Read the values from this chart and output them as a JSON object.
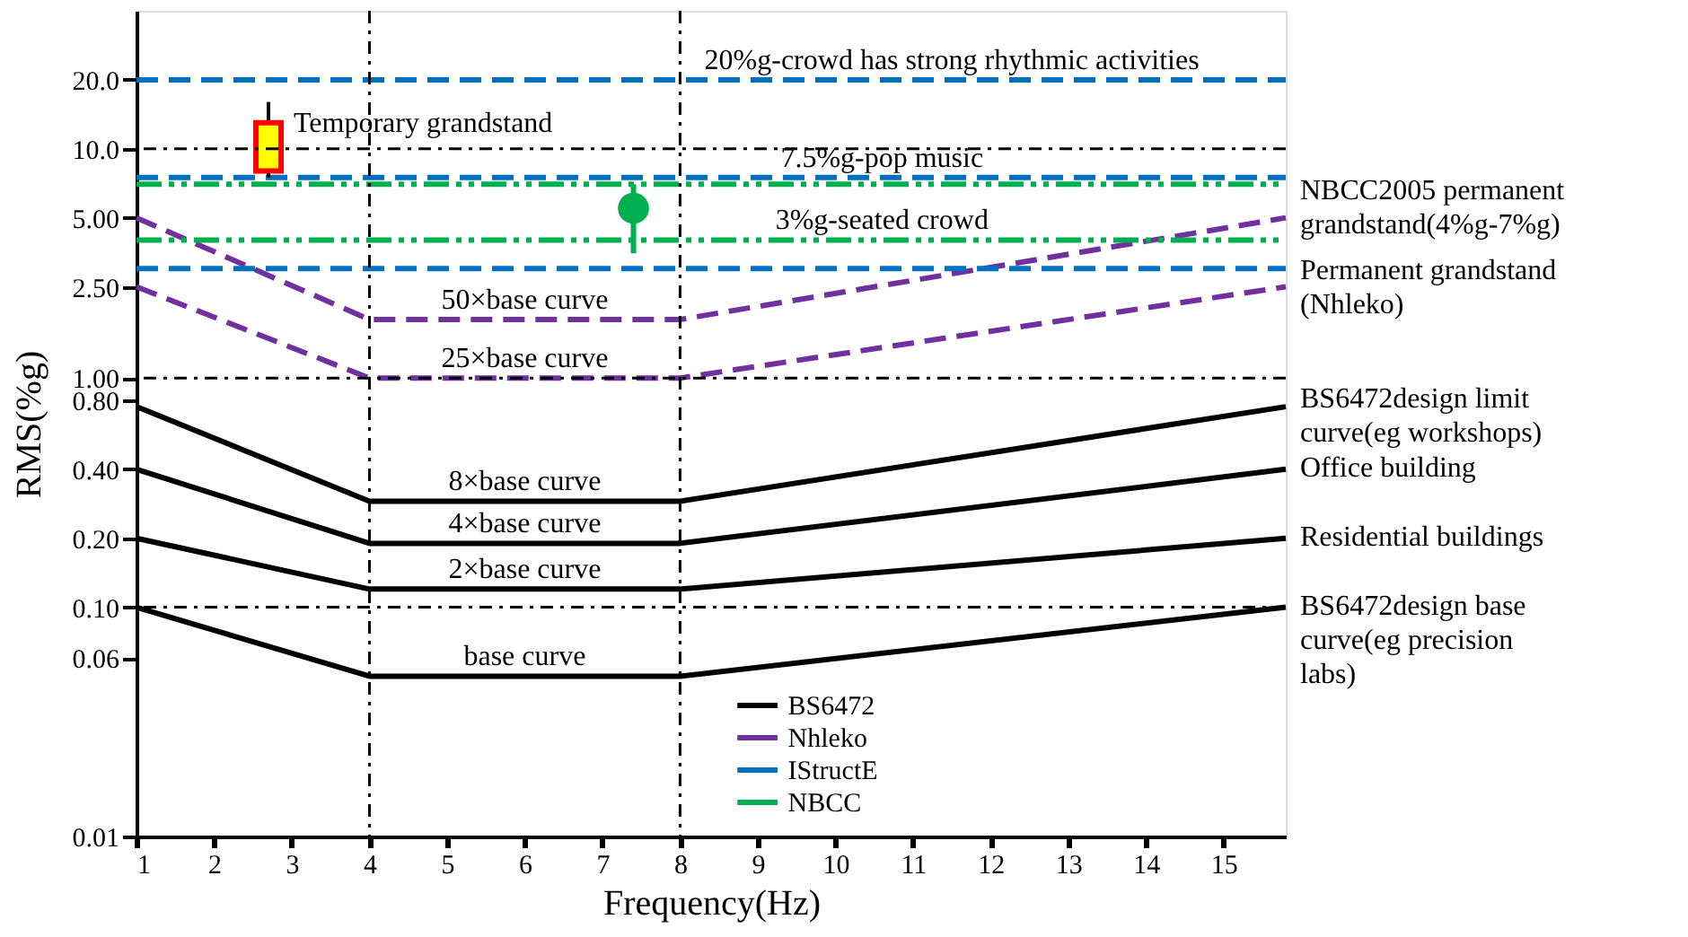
{
  "chart_data": {
    "type": "line",
    "xlabel": "Frequency(Hz)",
    "ylabel": "RMS(%g)",
    "xlim": [
      1,
      15.8
    ],
    "xticks": [
      1,
      2,
      3,
      4,
      5,
      6,
      7,
      8,
      9,
      10,
      11,
      12,
      13,
      14,
      15
    ],
    "ylim": [
      0.01,
      40
    ],
    "log": "y",
    "yticks": [
      0.01,
      0.06,
      {
        "value": 0.1,
        "label": "0.10"
      },
      {
        "value": 0.2,
        "label": "0.20"
      },
      {
        "value": 0.4,
        "label": "0.40"
      },
      {
        "value": 0.8,
        "label": "0.80"
      },
      {
        "value": 1,
        "label": "1.00"
      },
      {
        "value": 2.5,
        "label": "2.50"
      },
      {
        "value": 5,
        "label": "5.00"
      },
      {
        "value": 10,
        "label": "10.0"
      },
      {
        "value": 20,
        "label": "20.0"
      }
    ],
    "grid": false,
    "legend": "bottom",
    "series": [
      {
        "name": "BS6472",
        "color": "#000000",
        "line_style": "solid",
        "x": [
          1,
          4,
          8,
          15.8
        ],
        "values": [
          0.1,
          0.05,
          0.05,
          0.1
        ]
      },
      {
        "color": "#000000",
        "line_style": "solid",
        "x": [
          1,
          4,
          8,
          15.8
        ],
        "values": [
          0.2,
          0.12,
          0.12,
          0.2
        ]
      },
      {
        "color": "#000000",
        "line_style": "solid",
        "x": [
          1,
          4,
          8,
          15.8
        ],
        "values": [
          0.4,
          0.19,
          0.19,
          0.4
        ]
      },
      {
        "color": "#000000",
        "line_style": "solid",
        "x": [
          1,
          4,
          8,
          15.8
        ],
        "values": [
          0.75,
          0.29,
          0.29,
          0.75
        ]
      },
      {
        "name": "Nhleko",
        "color": "#7030a0",
        "line_style": "dashed",
        "x": [
          1,
          4,
          8,
          15.8
        ],
        "values": [
          2.5,
          1,
          1,
          2.5
        ]
      },
      {
        "color": "#7030a0",
        "line_style": "dashed",
        "x": [
          1,
          4,
          8,
          15.8
        ],
        "values": [
          5,
          1.8,
          1.8,
          5
        ]
      },
      {
        "name": "IStructE",
        "color": "#0070c0",
        "line_style": "dashed",
        "x": [
          1,
          15.8
        ],
        "values": [
          20,
          20
        ]
      },
      {
        "color": "#0070c0",
        "line_style": "dashed",
        "x": [
          1,
          15.8
        ],
        "values": [
          7.5,
          7.5
        ]
      },
      {
        "color": "#0070c0",
        "line_style": "dashed",
        "x": [
          1,
          15.8
        ],
        "values": [
          3,
          3
        ]
      },
      {
        "name": "NBCC",
        "color": "#00b050",
        "line_style": "dotted",
        "x": [
          1,
          15.8
        ],
        "values": [
          4,
          4
        ]
      },
      {
        "color": "#00b050",
        "line_style": "dotted",
        "x": [
          1,
          15.8
        ],
        "values": [
          7,
          7
        ]
      },
      {
        "type": "box",
        "color": "#ffff00",
        "x": [
          2.7
        ],
        "boxes": [
          {
            "low": 7.5,
            "q1": 8,
            "q3": 13,
            "high": 16
          }
        ]
      },
      {
        "type": "scatter",
        "color": "#00b050",
        "marker": "circle",
        "x": [
          7.4
        ],
        "values": [
          5.5
        ],
        "errors": [
          [
            3.5,
            7
          ]
        ]
      }
    ],
    "ref_lines": [
      {
        "axis": "x",
        "value": 4,
        "label": null,
        "color": "#000000",
        "line_style": "dashed"
      },
      {
        "axis": "x",
        "value": 8,
        "label": null,
        "color": "#000000",
        "line_style": "dashed"
      },
      {
        "axis": "y",
        "value": 0.1,
        "label": null,
        "color": "#000000",
        "line_style": "dashed"
      },
      {
        "axis": "y",
        "value": 1,
        "label": null,
        "color": "#000000",
        "line_style": "dashed"
      },
      {
        "axis": "y",
        "value": 10,
        "label": null,
        "color": "#000000",
        "line_style": "dashed"
      }
    ],
    "annotations": [
      {
        "text": "20%g-crowd has strong rhythmic activities",
        "x": 11.5,
        "y": 20
      },
      {
        "text": "7.5%g-pop music",
        "x": 10.6,
        "y": 7.5
      },
      {
        "text": "3%g-seated crowd",
        "x": 10.6,
        "y": 4
      },
      {
        "text": "Temporary grandstand",
        "x": 2.7,
        "y": 13
      },
      {
        "text": "50×base curve",
        "x": 6,
        "y": 1.8
      },
      {
        "text": "25×base curve",
        "x": 6,
        "y": 1
      },
      {
        "text": "8×base curve",
        "x": 6,
        "y": 0.29
      },
      {
        "text": "4×base curve",
        "x": 6,
        "y": 0.19
      },
      {
        "text": "2×base curve",
        "x": 6,
        "y": 0.12
      },
      {
        "text": "base curve",
        "x": 6,
        "y": 0.05
      },
      {
        "text": "NBCC2005 permanent grandstand(4%g-7%g)",
        "x": 15.8,
        "y": 6.5
      },
      {
        "text": "Permanent grandstand (Nhleko)",
        "x": 15.8,
        "y": 2.9
      },
      {
        "text": "BS6472design limit curve(eg workshops)",
        "x": 15.8,
        "y": 0.8
      },
      {
        "text": "Office building",
        "x": 15.8,
        "y": 0.4
      },
      {
        "text": "Residential buildings",
        "x": 15.8,
        "y": 0.2
      },
      {
        "text": "BS6472design base curve(eg precision labs)",
        "x": 15.8,
        "y": 0.1
      }
    ]
  }
}
